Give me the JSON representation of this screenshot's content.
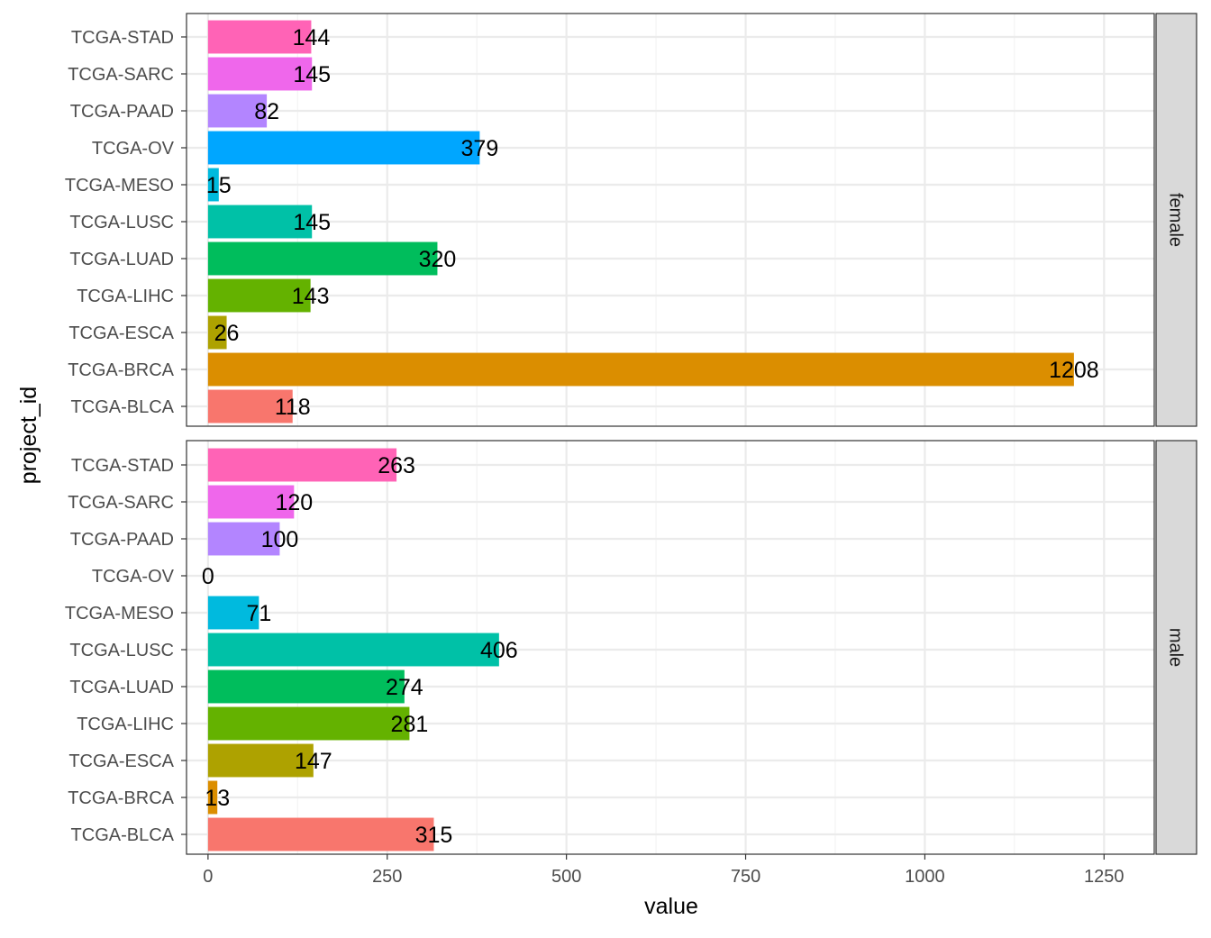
{
  "chart_data": {
    "type": "bar",
    "orientation": "horizontal",
    "xlabel": "value",
    "ylabel": "project_id",
    "xlim": [
      -30,
      1320
    ],
    "xticks": [
      0,
      250,
      500,
      750,
      1000,
      1250
    ],
    "grid": true,
    "categories": [
      "TCGA-BLCA",
      "TCGA-BRCA",
      "TCGA-ESCA",
      "TCGA-LIHC",
      "TCGA-LUAD",
      "TCGA-LUSC",
      "TCGA-MESO",
      "TCGA-OV",
      "TCGA-PAAD",
      "TCGA-SARC",
      "TCGA-STAD"
    ],
    "colors": [
      "#F8766D",
      "#DB8E00",
      "#AEA200",
      "#64B200",
      "#00BD5C",
      "#00C1A7",
      "#00BADE",
      "#00A6FF",
      "#B385FF",
      "#EF67EB",
      "#FF63B6"
    ],
    "panels": [
      {
        "facet": "female",
        "values": [
          118,
          1208,
          26,
          143,
          320,
          145,
          15,
          379,
          82,
          145,
          144
        ]
      },
      {
        "facet": "male",
        "values": [
          315,
          13,
          147,
          281,
          274,
          406,
          71,
          0,
          100,
          120,
          263
        ]
      }
    ]
  }
}
